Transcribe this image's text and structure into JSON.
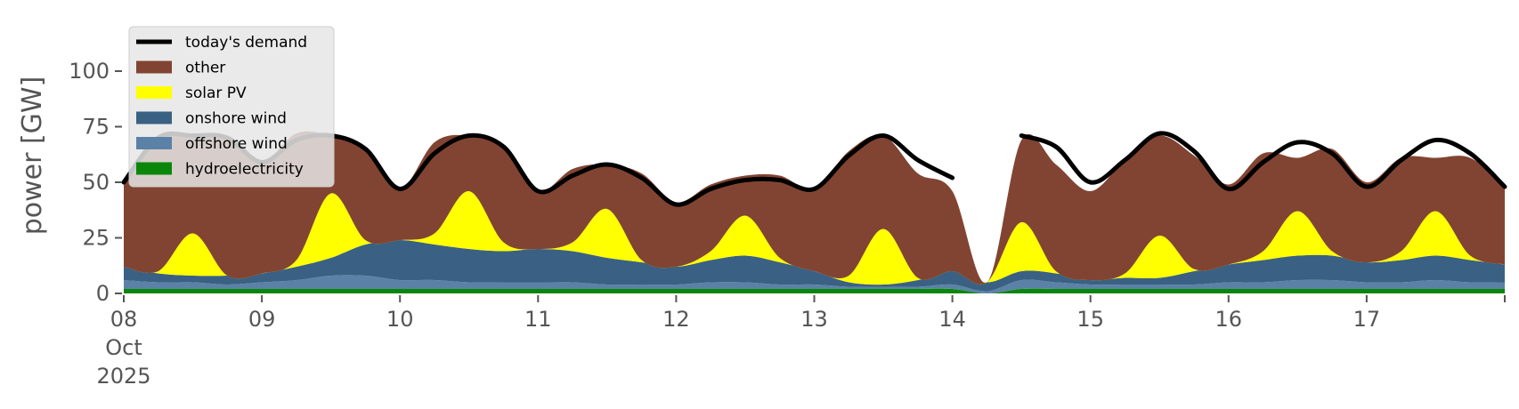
{
  "chart_data": {
    "type": "area",
    "title": "",
    "xlabel": "",
    "ylabel": "power [GW]",
    "ylim": [
      0,
      120
    ],
    "xlim_days": [
      8,
      18
    ],
    "y_ticks": [
      0,
      25,
      50,
      75,
      100
    ],
    "x_ticks": [
      {
        "day": 8,
        "label_lines": [
          "08",
          "Oct",
          "2025"
        ]
      },
      {
        "day": 9,
        "label_lines": [
          "09"
        ]
      },
      {
        "day": 10,
        "label_lines": [
          "10"
        ]
      },
      {
        "day": 11,
        "label_lines": [
          "11"
        ]
      },
      {
        "day": 12,
        "label_lines": [
          "12"
        ]
      },
      {
        "day": 13,
        "label_lines": [
          "13"
        ]
      },
      {
        "day": 14,
        "label_lines": [
          "14"
        ]
      },
      {
        "day": 15,
        "label_lines": [
          "15"
        ]
      },
      {
        "day": 16,
        "label_lines": [
          "16"
        ]
      },
      {
        "day": 17,
        "label_lines": [
          "17"
        ]
      }
    ],
    "grid": false,
    "legend_position": "top-left",
    "legend": [
      {
        "label": "today's demand",
        "kind": "line",
        "color": "#000000"
      },
      {
        "label": "other",
        "kind": "patch",
        "color": "#824432"
      },
      {
        "label": "solar PV",
        "kind": "patch",
        "color": "#ffff00"
      },
      {
        "label": "onshore wind",
        "kind": "patch",
        "color": "#3a6183"
      },
      {
        "label": "offshore wind",
        "kind": "patch",
        "color": "#5b82a6"
      },
      {
        "label": "hydroelectricity",
        "kind": "patch",
        "color": "#0a870a"
      }
    ],
    "x_day_points": [
      8.0,
      8.25,
      8.5,
      8.75,
      9.0,
      9.25,
      9.5,
      9.75,
      10.0,
      10.25,
      10.5,
      10.75,
      11.0,
      11.25,
      11.5,
      11.75,
      12.0,
      12.25,
      12.5,
      12.75,
      13.0,
      13.25,
      13.5,
      13.75,
      14.0,
      14.25,
      14.5,
      14.75,
      15.0,
      15.25,
      15.5,
      15.75,
      16.0,
      16.25,
      16.5,
      16.75,
      17.0,
      17.25,
      17.5,
      17.75,
      18.0
    ],
    "series": [
      {
        "name": "hydroelectricity",
        "color": "#0a870a",
        "values": [
          2,
          2,
          2,
          2,
          2,
          2,
          2,
          2,
          2,
          2,
          2,
          2,
          2,
          2,
          2,
          2,
          2,
          2,
          2,
          2,
          2,
          2,
          2,
          2,
          2,
          0,
          2,
          2,
          2,
          2,
          2,
          2,
          2,
          2,
          2,
          2,
          2,
          2,
          2,
          2,
          2
        ]
      },
      {
        "name": "offshore wind",
        "color": "#5b82a6",
        "values": [
          4,
          3,
          3,
          2,
          3,
          4,
          6,
          6,
          4,
          4,
          3,
          3,
          3,
          3,
          2,
          2,
          2,
          3,
          3,
          2,
          2,
          1,
          1,
          1,
          2,
          1,
          4,
          3,
          2,
          2,
          2,
          2,
          3,
          3,
          4,
          4,
          3,
          3,
          4,
          3,
          3
        ]
      },
      {
        "name": "onshore wind",
        "color": "#3a6183",
        "values": [
          6,
          4,
          3,
          4,
          4,
          6,
          8,
          14,
          18,
          16,
          15,
          14,
          15,
          14,
          12,
          10,
          8,
          10,
          12,
          10,
          6,
          2,
          1,
          3,
          6,
          4,
          4,
          4,
          2,
          3,
          3,
          6,
          8,
          10,
          11,
          11,
          9,
          10,
          11,
          10,
          8
        ]
      },
      {
        "name": "solar PV",
        "color": "#ffff00",
        "values": [
          0,
          1,
          19,
          0,
          0,
          3,
          29,
          2,
          0,
          5,
          26,
          4,
          0,
          4,
          22,
          1,
          0,
          4,
          18,
          2,
          0,
          3,
          25,
          1,
          0,
          0,
          22,
          1,
          0,
          2,
          19,
          1,
          0,
          4,
          20,
          2,
          0,
          4,
          20,
          2,
          0
        ]
      },
      {
        "name": "other",
        "color": "#824432",
        "values": [
          38,
          60,
          44,
          62,
          50,
          57,
          26,
          41,
          23,
          41,
          25,
          43,
          26,
          33,
          20,
          39,
          29,
          30,
          18,
          37,
          37,
          56,
          42,
          47,
          36,
          0,
          37,
          48,
          40,
          51,
          45,
          51,
          36,
          44,
          24,
          46,
          36,
          42,
          24,
          44,
          35
        ]
      }
    ],
    "demand_values": [
      50,
      70,
      71,
      70,
      59,
      69,
      71,
      65,
      47,
      63,
      71,
      66,
      46,
      53,
      58,
      52,
      40,
      47,
      51,
      51,
      47,
      62,
      71,
      60,
      52,
      null,
      71,
      66,
      50,
      60,
      72,
      64,
      47,
      59,
      68,
      63,
      48,
      60,
      69,
      63,
      48
    ]
  }
}
